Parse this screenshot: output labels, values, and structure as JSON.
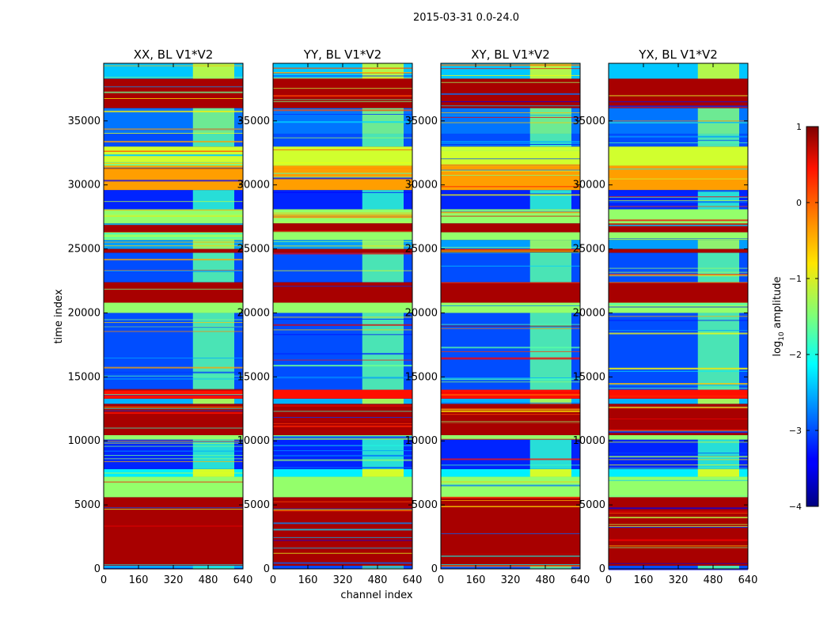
{
  "figure_title": "2015-03-31 0.0-24.0",
  "chart_data": {
    "type": "heatmap",
    "suptitle": "2015-03-31 0.0-24.0",
    "xlabel": "channel index",
    "ylabel": "time index",
    "x_ticks": [
      0,
      160,
      320,
      480,
      640
    ],
    "x_tick_labels": [
      "0",
      "160",
      "320",
      "480",
      "640"
    ],
    "xlim": [
      0,
      640
    ],
    "y_ticks": [
      0,
      5000,
      10000,
      15000,
      20000,
      25000,
      30000,
      35000
    ],
    "y_tick_labels": [
      "0",
      "5000",
      "10000",
      "15000",
      "20000",
      "25000",
      "30000",
      "35000"
    ],
    "ylim": [
      0,
      39500
    ],
    "panels": [
      {
        "title": "XX, BL V1*V2",
        "polarization": "XX"
      },
      {
        "title": "YY, BL V1*V2",
        "polarization": "YY"
      },
      {
        "title": "XY, BL V1*V2",
        "polarization": "XY"
      },
      {
        "title": "YX, BL V1*V2",
        "polarization": "YX"
      }
    ],
    "rfi_channel_range": [
      410,
      600
    ],
    "time_bands": [
      {
        "t0": 0,
        "t1": 250,
        "level": -3.0
      },
      {
        "t0": 250,
        "t1": 5600,
        "level": 0.8
      },
      {
        "t0": 5600,
        "t1": 7200,
        "level": -1.4
      },
      {
        "t0": 7200,
        "t1": 7800,
        "level": -2.2
      },
      {
        "t0": 7800,
        "t1": 10100,
        "level": -3.2
      },
      {
        "t0": 10100,
        "t1": 10450,
        "level": -1.4
      },
      {
        "t0": 10450,
        "t1": 12900,
        "level": 0.8
      },
      {
        "t0": 12900,
        "t1": 13300,
        "level": -2.5
      },
      {
        "t0": 13300,
        "t1": 14000,
        "level": 0.3
      },
      {
        "t0": 14000,
        "t1": 20000,
        "level": -3.0
      },
      {
        "t0": 20000,
        "t1": 20800,
        "level": -1.4
      },
      {
        "t0": 20800,
        "t1": 22400,
        "level": 0.8
      },
      {
        "t0": 22400,
        "t1": 24700,
        "level": -3.0
      },
      {
        "t0": 24700,
        "t1": 25000,
        "level": 0.8
      },
      {
        "t0": 25000,
        "t1": 25700,
        "level": -2.6
      },
      {
        "t0": 25700,
        "t1": 26300,
        "level": -1.4
      },
      {
        "t0": 26300,
        "t1": 27000,
        "level": 0.8
      },
      {
        "t0": 27000,
        "t1": 28100,
        "level": -1.4
      },
      {
        "t0": 28100,
        "t1": 29600,
        "level": -3.2
      },
      {
        "t0": 29600,
        "t1": 31500,
        "level": -0.4
      },
      {
        "t0": 31500,
        "t1": 33000,
        "level": -1.1
      },
      {
        "t0": 33000,
        "t1": 34000,
        "level": -3.0
      },
      {
        "t0": 34000,
        "t1": 36000,
        "level": -2.8
      },
      {
        "t0": 36000,
        "t1": 38300,
        "level": 0.8
      },
      {
        "t0": 38300,
        "t1": 39500,
        "level": -2.4
      }
    ],
    "colorbar": {
      "label": "log10 amplitude",
      "label_base": "log",
      "label_sub": "10",
      "label_rest": " amplitude",
      "vmin": -4,
      "vmax": 1,
      "ticks": [
        -4,
        -3,
        -2,
        -1,
        0,
        1
      ],
      "tick_labels": [
        "−4",
        "−3",
        "−2",
        "−1",
        "0",
        "1"
      ],
      "colormap": "jet"
    }
  }
}
